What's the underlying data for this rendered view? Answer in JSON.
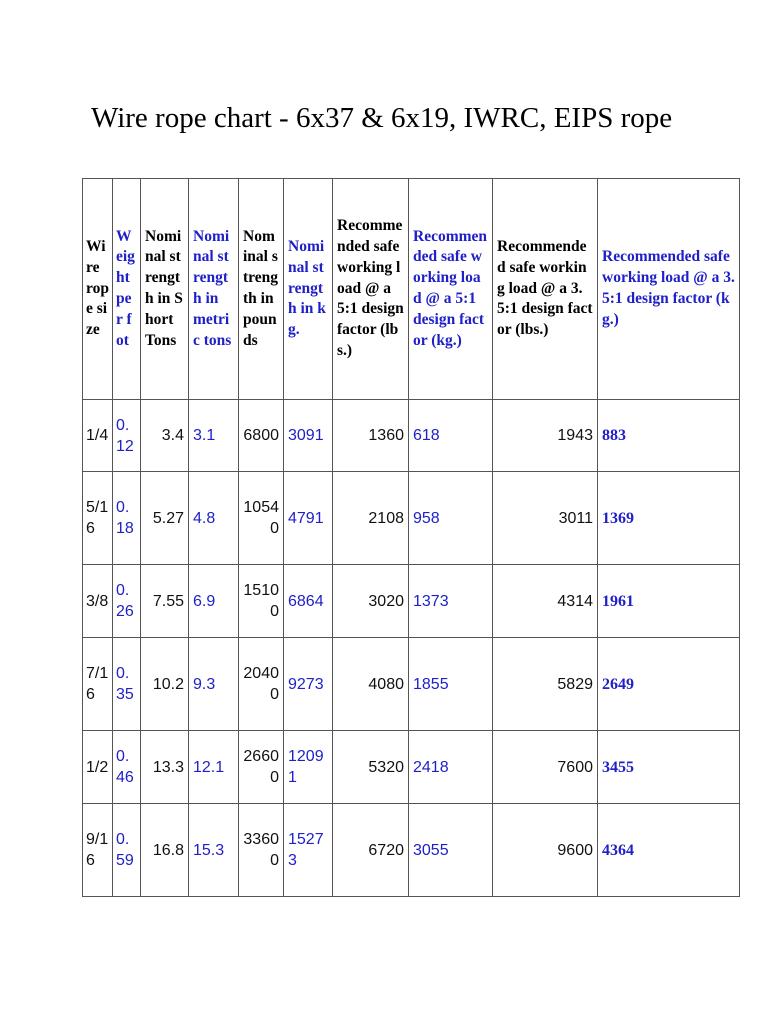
{
  "title": "Wire rope chart - 6x37 & 6x19, IWRC, EIPS rope",
  "colors": {
    "accent_blue": "#2020c8",
    "text": "#111111",
    "border": "#555555"
  },
  "table": {
    "headers": [
      "Wire rope size",
      "Weight per fot",
      "Nominal strength in Short Tons",
      "Nominal strength in metric tons",
      "Nominal strength in pounds",
      "Nominal strength in kg.",
      "Recommended safe working load @ a 5:1 design factor (lbs.)",
      "Recommended safe working load @ a 5:1 design factor (kg.)",
      "Recommended safe working load @ a 3.5:1 design factor (lbs.)",
      "Recommended safe working load @ a 3.5:1 design factor (kg.)"
    ],
    "rows": [
      [
        "1/4",
        "0.12",
        "3.4",
        "3.1",
        "6800",
        "3091",
        "1360",
        "618",
        "1943",
        "883"
      ],
      [
        "5/16",
        "0.18",
        "5.27",
        "4.8",
        "10540",
        "4791",
        "2108",
        "958",
        "3011",
        "1369"
      ],
      [
        "3/8",
        "0.26",
        "7.55",
        "6.9",
        "15100",
        "6864",
        "3020",
        "1373",
        "4314",
        "1961"
      ],
      [
        "7/16",
        "0.35",
        "10.2",
        "9.3",
        "20400",
        "9273",
        "4080",
        "1855",
        "5829",
        "2649"
      ],
      [
        "1/2",
        "0.46",
        "13.3",
        "12.1",
        "26600",
        "12091",
        "5320",
        "2418",
        "7600",
        "3455"
      ],
      [
        "9/16",
        "0.59",
        "16.8",
        "15.3",
        "33600",
        "15273",
        "6720",
        "3055",
        "9600",
        "4364"
      ]
    ]
  }
}
